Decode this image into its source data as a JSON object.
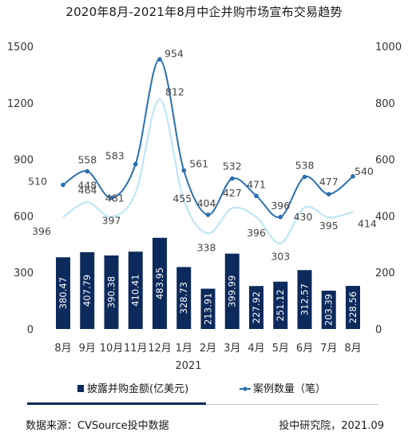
{
  "title": "2020年8月-2021年8月中企并购市场宣布交易趋势",
  "chart_data": {
    "type": "bar",
    "categories": [
      "8月",
      "9月",
      "10月",
      "11月",
      "12月",
      "1月",
      "2月",
      "3月",
      "4月",
      "5月",
      "6月",
      "7月",
      "8月"
    ],
    "year_label": "2021",
    "left_axis": {
      "ylim": [
        0,
        1500
      ],
      "ticks": [
        0,
        300,
        600,
        900,
        1200,
        1500
      ]
    },
    "right_axis": {
      "ylim": [
        0,
        1000
      ],
      "ticks": [
        0,
        200,
        400,
        600,
        800,
        1000
      ]
    },
    "bars": {
      "name": "披露并购金额(亿美元)",
      "axis": "left",
      "color": "#0d2a5c",
      "values": [
        380.47,
        407.79,
        390.38,
        410.41,
        483.95,
        328.73,
        213.91,
        399.99,
        227.92,
        251.12,
        312.57,
        203.39,
        228.56
      ]
    },
    "lines": [
      {
        "name": "案例数量（笔）",
        "axis": "right",
        "color": "#2a6fb0",
        "values": [
          510,
          558,
          464,
          583,
          954,
          561,
          404,
          532,
          471,
          396,
          538,
          477,
          540
        ]
      },
      {
        "axis": "right",
        "color": "#bfe6f5",
        "values": [
          396,
          448,
          397,
          481,
          812,
          455,
          338,
          427,
          396,
          303,
          430,
          395,
          414
        ]
      }
    ],
    "legend_position": "bottom"
  },
  "footer": {
    "source": "数据来源：CVSource投中数据",
    "credit": "投中研究院，2021.09"
  }
}
